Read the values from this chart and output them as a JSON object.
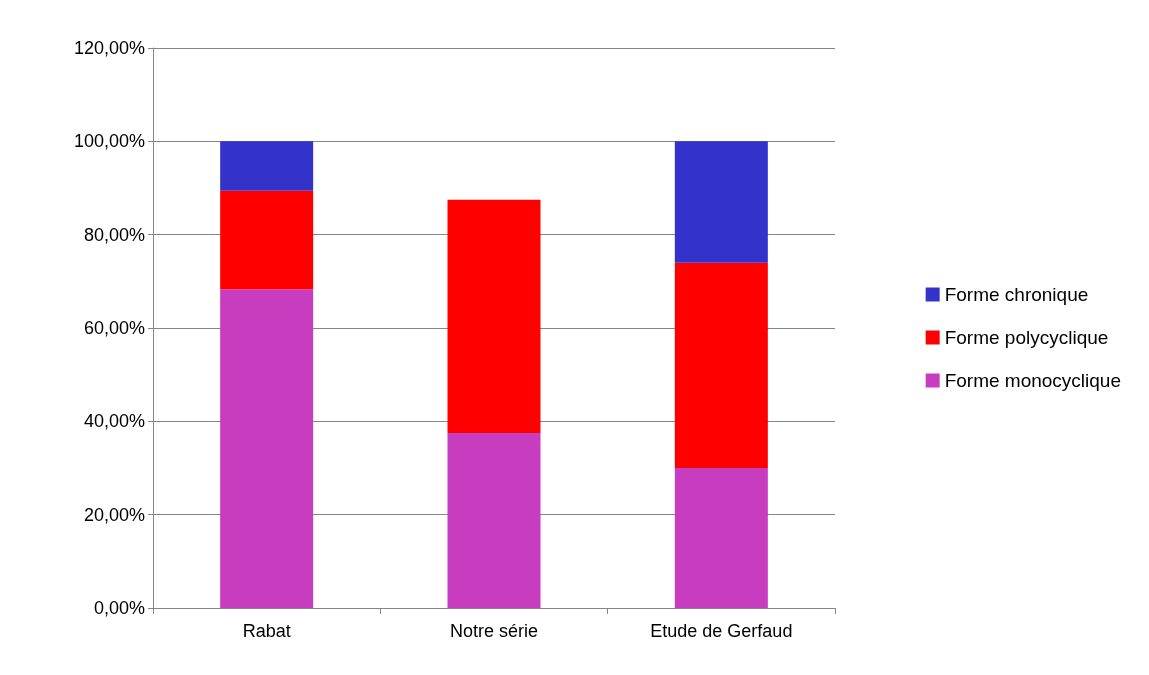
{
  "chart_data": {
    "type": "bar",
    "stacked": true,
    "categories": [
      "Rabat",
      "Notre série",
      "Etude de Gerfaud"
    ],
    "series": [
      {
        "name": "Forme monocyclique",
        "color": "#c83cbf",
        "values": [
          68.3,
          37.5,
          30
        ]
      },
      {
        "name": "Forme polycyclique",
        "color": "#ff0000",
        "values": [
          21.1,
          50,
          44
        ]
      },
      {
        "name": "Forme chronique",
        "color": "#3333cc",
        "values": [
          10.6,
          null,
          26
        ]
      }
    ],
    "ylim": [
      0,
      120
    ],
    "yticks": [
      {
        "value": 0,
        "label": "0,00%"
      },
      {
        "value": 20,
        "label": "20,00%"
      },
      {
        "value": 40,
        "label": "40,00%"
      },
      {
        "value": 60,
        "label": "60,00%"
      },
      {
        "value": 80,
        "label": "80,00%"
      },
      {
        "value": 100,
        "label": "100,00%"
      },
      {
        "value": 120,
        "label": "120,00%"
      }
    ],
    "grid": "y",
    "legend": "right"
  }
}
